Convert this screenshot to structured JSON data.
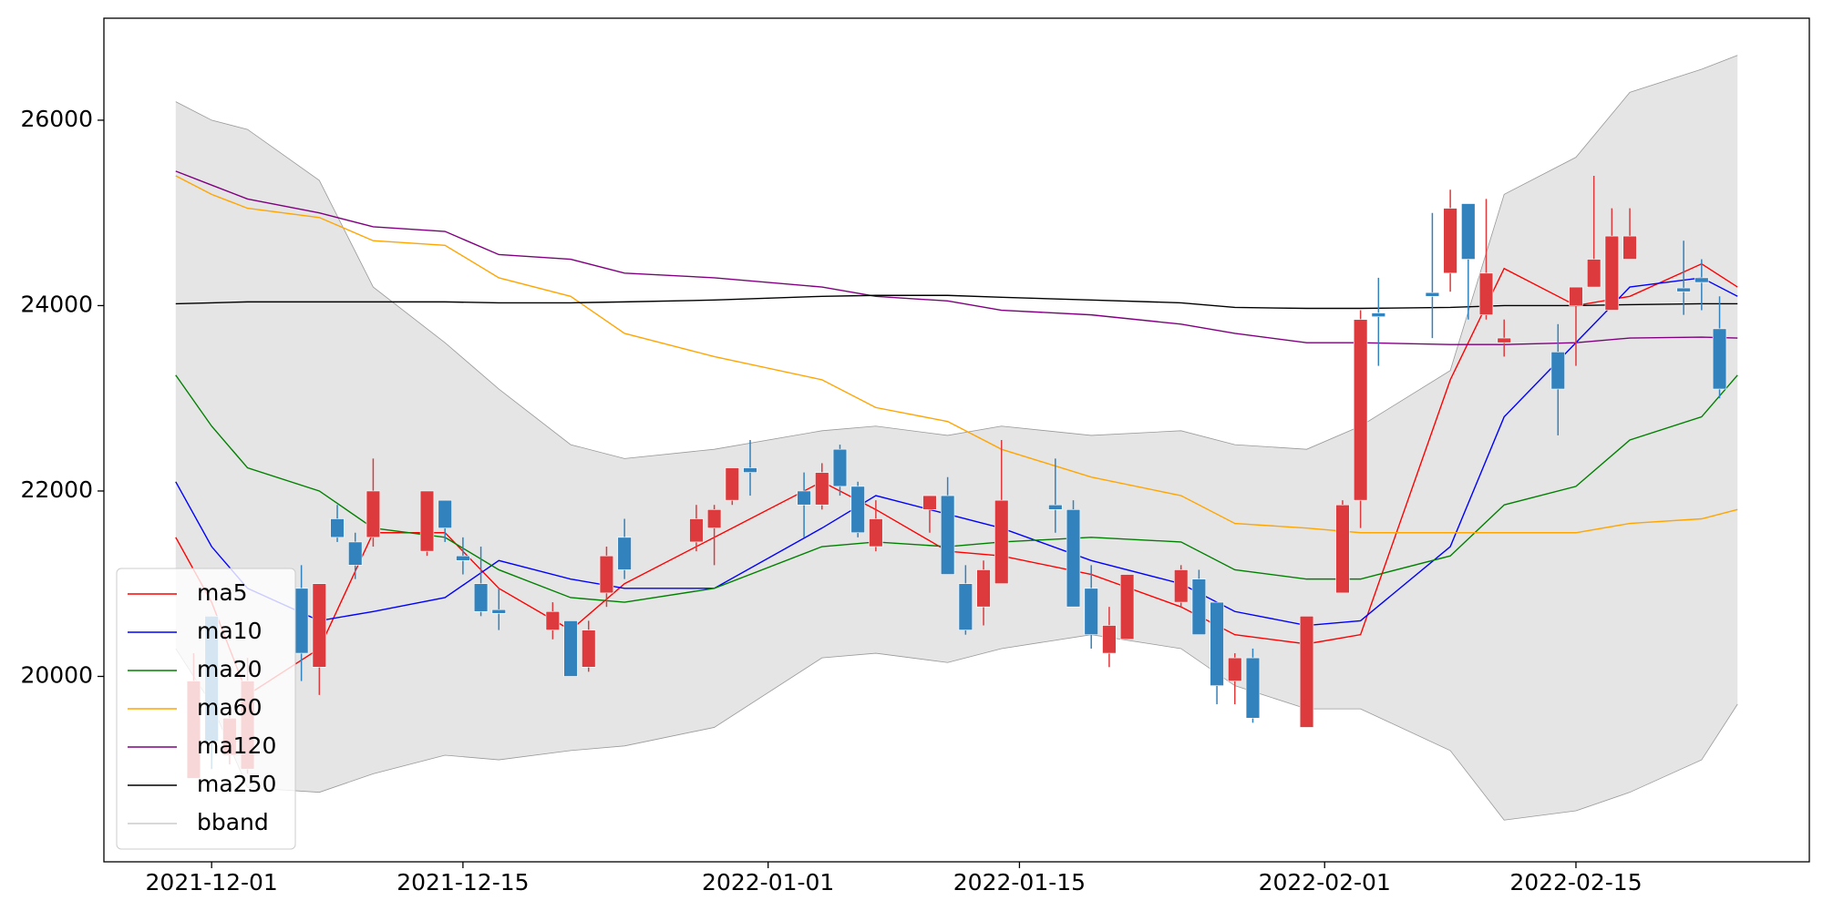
{
  "chart_data": {
    "type": "candlestick",
    "x": [
      "2021-11-30",
      "2021-12-01",
      "2021-12-02",
      "2021-12-03",
      "2021-12-06",
      "2021-12-07",
      "2021-12-08",
      "2021-12-09",
      "2021-12-10",
      "2021-12-13",
      "2021-12-14",
      "2021-12-15",
      "2021-12-16",
      "2021-12-17",
      "2021-12-20",
      "2021-12-21",
      "2021-12-22",
      "2021-12-23",
      "2021-12-24",
      "2021-12-28",
      "2021-12-29",
      "2021-12-30",
      "2021-12-31",
      "2022-01-03",
      "2022-01-04",
      "2022-01-05",
      "2022-01-06",
      "2022-01-07",
      "2022-01-10",
      "2022-01-11",
      "2022-01-12",
      "2022-01-13",
      "2022-01-14",
      "2022-01-17",
      "2022-01-18",
      "2022-01-19",
      "2022-01-20",
      "2022-01-21",
      "2022-01-24",
      "2022-01-25",
      "2022-01-26",
      "2022-01-27",
      "2022-01-28",
      "2022-01-31",
      "2022-02-02",
      "2022-02-03",
      "2022-02-04",
      "2022-02-07",
      "2022-02-08",
      "2022-02-09",
      "2022-02-10",
      "2022-02-11",
      "2022-02-14",
      "2022-02-15",
      "2022-02-16",
      "2022-02-17",
      "2022-02-18",
      "2022-02-21",
      "2022-02-22",
      "2022-02-23"
    ],
    "open": [
      18900,
      20650,
      19150,
      19000,
      20950,
      20100,
      21700,
      21450,
      21500,
      21350,
      21900,
      21300,
      21000,
      20720,
      20500,
      20600,
      20100,
      20900,
      21500,
      21450,
      21600,
      21900,
      22250,
      22000,
      21850,
      22450,
      22050,
      21400,
      21800,
      21950,
      21000,
      20750,
      21000,
      21850,
      21800,
      20950,
      20250,
      20400,
      20800,
      21050,
      20800,
      19950,
      20200,
      19450,
      20900,
      21900,
      23920,
      24140,
      24350,
      25100,
      23900,
      23600,
      23500,
      24000,
      24200,
      23950,
      24500,
      24190,
      24300,
      23750
    ],
    "high": [
      20250,
      20650,
      19600,
      20200,
      21200,
      21000,
      21850,
      21550,
      22350,
      22000,
      21900,
      21500,
      21400,
      20950,
      20800,
      20600,
      20600,
      21400,
      21700,
      21850,
      21850,
      22250,
      22550,
      22200,
      22300,
      22500,
      22100,
      21900,
      21950,
      22150,
      21200,
      21250,
      22550,
      22350,
      21900,
      21200,
      20750,
      21100,
      21200,
      21150,
      20800,
      20250,
      20300,
      20650,
      21900,
      23950,
      24300,
      25000,
      25250,
      25100,
      25150,
      23850,
      23800,
      24200,
      25400,
      25050,
      25050,
      24700,
      24500,
      24100
    ],
    "low": [
      18900,
      19000,
      19050,
      18950,
      19950,
      19800,
      21450,
      21050,
      21400,
      21300,
      21450,
      21100,
      20650,
      20500,
      20400,
      20000,
      20050,
      20750,
      21050,
      21350,
      21200,
      21850,
      21950,
      21500,
      21800,
      21950,
      21500,
      21350,
      21550,
      21100,
      20450,
      20550,
      21000,
      21550,
      20750,
      20300,
      20100,
      20400,
      20750,
      20450,
      19700,
      19700,
      19500,
      19450,
      20900,
      21600,
      23350,
      23650,
      24150,
      23850,
      23850,
      23450,
      22600,
      23350,
      24200,
      23950,
      24500,
      23900,
      23950,
      23000
    ],
    "close": [
      19950,
      19300,
      19550,
      19950,
      20250,
      21000,
      21500,
      21200,
      22000,
      22000,
      21600,
      21250,
      20700,
      20680,
      20700,
      20000,
      20500,
      21300,
      21150,
      21700,
      21800,
      22250,
      22200,
      21850,
      22200,
      22050,
      21550,
      21700,
      21950,
      21100,
      20500,
      21150,
      21900,
      21800,
      20750,
      20450,
      20550,
      21100,
      21150,
      20450,
      19900,
      20200,
      19550,
      20650,
      21850,
      23850,
      23880,
      24100,
      25050,
      24500,
      24350,
      23650,
      23100,
      24200,
      24500,
      24750,
      24750,
      24150,
      24250,
      23100
    ],
    "up_color": "#dc3a3c",
    "down_color": "#3182bd",
    "lines": {
      "x": [
        "2021-11-29",
        "2021-12-01",
        "2021-12-03",
        "2021-12-07",
        "2021-12-10",
        "2021-12-14",
        "2021-12-17",
        "2021-12-21",
        "2021-12-24",
        "2021-12-29",
        "2022-01-04",
        "2022-01-07",
        "2022-01-11",
        "2022-01-14",
        "2022-01-19",
        "2022-01-24",
        "2022-01-27",
        "2022-01-31",
        "2022-02-03",
        "2022-02-08",
        "2022-02-11",
        "2022-02-15",
        "2022-02-18",
        "2022-02-22",
        "2022-02-24"
      ],
      "series": [
        {
          "name": "ma5",
          "color": "#ff0000",
          "values": [
            21500,
            20800,
            19800,
            20300,
            21550,
            21550,
            20950,
            20500,
            21000,
            21500,
            22100,
            21800,
            21350,
            21300,
            21100,
            20750,
            20450,
            20350,
            20450,
            23200,
            24400,
            24000,
            24100,
            24450,
            24200
          ]
        },
        {
          "name": "ma10",
          "color": "#0000ff",
          "values": [
            22100,
            21400,
            20950,
            20600,
            20700,
            20850,
            21250,
            21050,
            20950,
            20950,
            21600,
            21950,
            21750,
            21600,
            21250,
            21000,
            20700,
            20550,
            20600,
            21400,
            22800,
            23600,
            24200,
            24300,
            24100
          ]
        },
        {
          "name": "ma20",
          "color": "#008000",
          "values": [
            23250,
            22700,
            22250,
            22000,
            21600,
            21500,
            21150,
            20850,
            20800,
            20950,
            21400,
            21450,
            21400,
            21450,
            21500,
            21450,
            21150,
            21050,
            21050,
            21300,
            21850,
            22050,
            22550,
            22800,
            23250
          ]
        },
        {
          "name": "ma60",
          "color": "#ffa500",
          "values": [
            25400,
            25200,
            25050,
            24950,
            24700,
            24650,
            24300,
            24100,
            23700,
            23450,
            23200,
            22900,
            22750,
            22450,
            22150,
            21950,
            21650,
            21600,
            21550,
            21550,
            21550,
            21550,
            21650,
            21700,
            21800
          ]
        },
        {
          "name": "ma120",
          "color": "#800080",
          "values": [
            25450,
            25300,
            25150,
            25000,
            24850,
            24800,
            24550,
            24500,
            24350,
            24300,
            24200,
            24100,
            24050,
            23950,
            23900,
            23800,
            23700,
            23600,
            23600,
            23580,
            23580,
            23600,
            23650,
            23660,
            23650
          ]
        },
        {
          "name": "ma250",
          "color": "#000000",
          "values": [
            24020,
            24030,
            24040,
            24040,
            24040,
            24040,
            24030,
            24030,
            24040,
            24060,
            24100,
            24110,
            24110,
            24090,
            24060,
            24030,
            23980,
            23970,
            23970,
            23980,
            24000,
            24000,
            24010,
            24020,
            24020
          ]
        }
      ]
    },
    "bband": {
      "name": "bband",
      "color": "#999999",
      "fill": "#e5e5e5",
      "upper": [
        26200,
        26000,
        25900,
        25350,
        24200,
        23600,
        23100,
        22500,
        22350,
        22450,
        22650,
        22700,
        22600,
        22700,
        22600,
        22650,
        22500,
        22450,
        22700,
        23300,
        25200,
        25600,
        26300,
        26550,
        26700
      ],
      "lower": [
        20300,
        19700,
        18800,
        18750,
        18950,
        19150,
        19100,
        19200,
        19250,
        19450,
        20200,
        20250,
        20150,
        20300,
        20450,
        20300,
        19900,
        19650,
        19650,
        19200,
        18450,
        18550,
        18750,
        19100,
        19700
      ]
    },
    "xlim": [
      "2021-11-25",
      "2022-02-28"
    ],
    "xticks": [
      "2021-12-01",
      "2021-12-15",
      "2022-01-01",
      "2022-01-15",
      "2022-02-01",
      "2022-02-15"
    ],
    "ylim": [
      18000,
      27100
    ],
    "yticks": [
      20000,
      22000,
      24000,
      26000
    ],
    "legend": "lower left"
  }
}
